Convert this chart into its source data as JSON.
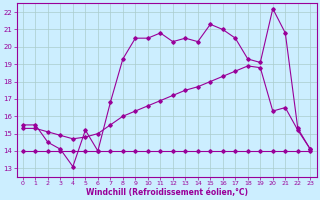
{
  "xlabel": "Windchill (Refroidissement éolien,°C)",
  "bg_color": "#cceeff",
  "line_color": "#990099",
  "grid_color": "#aacccc",
  "x_ticks": [
    0,
    1,
    2,
    3,
    4,
    5,
    6,
    7,
    8,
    9,
    10,
    11,
    12,
    13,
    14,
    15,
    16,
    17,
    18,
    19,
    20,
    21,
    22,
    23
  ],
  "y_ticks": [
    13,
    14,
    15,
    16,
    17,
    18,
    19,
    20,
    21,
    22
  ],
  "xlim": [
    -0.5,
    23.5
  ],
  "ylim": [
    12.5,
    22.5
  ],
  "series1": [
    15.5,
    15.5,
    14.5,
    14.1,
    13.1,
    15.2,
    14.0,
    16.8,
    19.3,
    20.5,
    20.5,
    20.8,
    20.3,
    20.5,
    20.3,
    21.3,
    21.0,
    20.5,
    19.3,
    19.1,
    22.2,
    20.8,
    15.3,
    14.1
  ],
  "series2": [
    15.3,
    15.3,
    15.1,
    14.9,
    14.7,
    14.8,
    15.0,
    15.5,
    16.0,
    16.3,
    16.6,
    16.9,
    17.2,
    17.5,
    17.7,
    18.0,
    18.3,
    18.6,
    18.9,
    18.8,
    16.3,
    16.5,
    15.2,
    14.1
  ],
  "series3": [
    14.0,
    14.0,
    14.0,
    14.0,
    14.0,
    14.0,
    14.0,
    14.0,
    14.0,
    14.0,
    14.0,
    14.0,
    14.0,
    14.0,
    14.0,
    14.0,
    14.0,
    14.0,
    14.0,
    14.0,
    14.0,
    14.0,
    14.0,
    14.0
  ]
}
